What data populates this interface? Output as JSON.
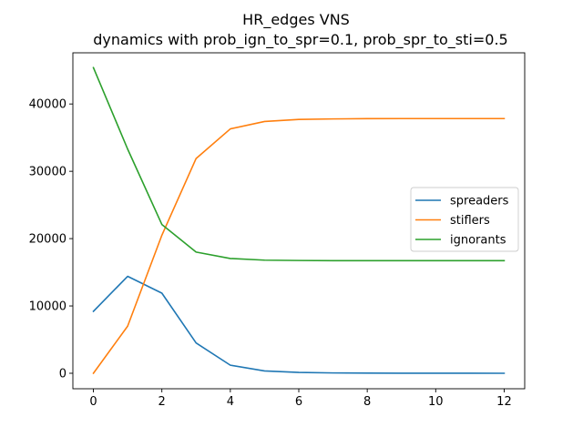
{
  "chart_data": {
    "type": "line",
    "title": "HR_edges VNS",
    "subtitle": "dynamics with prob_ign_to_spr=0.1, prob_spr_to_sti=0.5",
    "xlabel": "",
    "ylabel": "",
    "x": [
      0,
      1,
      2,
      3,
      4,
      5,
      6,
      7,
      8,
      9,
      10,
      11,
      12
    ],
    "xlim": [
      -0.6,
      12.6
    ],
    "ylim": [
      -2300,
      47600
    ],
    "xticks": [
      0,
      2,
      4,
      6,
      8,
      10,
      12
    ],
    "yticks": [
      0,
      10000,
      20000,
      30000,
      40000
    ],
    "grid": false,
    "legend_position": "center-right",
    "series": [
      {
        "name": "spreaders",
        "color": "#1f77b4",
        "values": [
          9200,
          14400,
          11900,
          4500,
          1200,
          350,
          120,
          50,
          20,
          10,
          5,
          2,
          0
        ]
      },
      {
        "name": "stiflers",
        "color": "#ff7f0e",
        "values": [
          0,
          7000,
          20500,
          31900,
          36300,
          37400,
          37700,
          37780,
          37820,
          37830,
          37830,
          37830,
          37830
        ]
      },
      {
        "name": "ignorants",
        "color": "#2ca02c",
        "values": [
          45400,
          33300,
          22100,
          18000,
          17050,
          16800,
          16750,
          16730,
          16720,
          16720,
          16720,
          16720,
          16720
        ]
      }
    ]
  }
}
